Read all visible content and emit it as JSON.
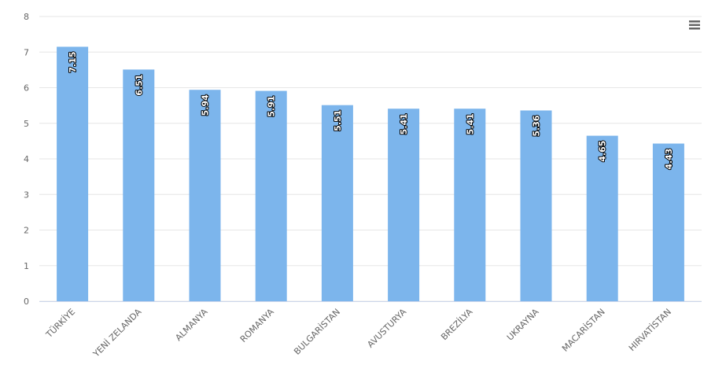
{
  "chart_data": {
    "type": "bar",
    "categories": [
      "TÜRKİYE",
      "YENİ ZELANDA",
      "ALMANYA",
      "ROMANYA",
      "BULGARİSTAN",
      "AVUSTURYA",
      "BREZİLYA",
      "UKRAYNA",
      "MACARİSTAN",
      "HIRVATİSTAN"
    ],
    "values": [
      7.15,
      6.51,
      5.94,
      5.91,
      5.51,
      5.41,
      5.41,
      5.36,
      4.65,
      4.43
    ],
    "color": "#7cb5ec",
    "ylim": [
      0,
      8
    ],
    "yticks": [
      0,
      1,
      2,
      3,
      4,
      5,
      6,
      7,
      8
    ],
    "grid": true
  }
}
